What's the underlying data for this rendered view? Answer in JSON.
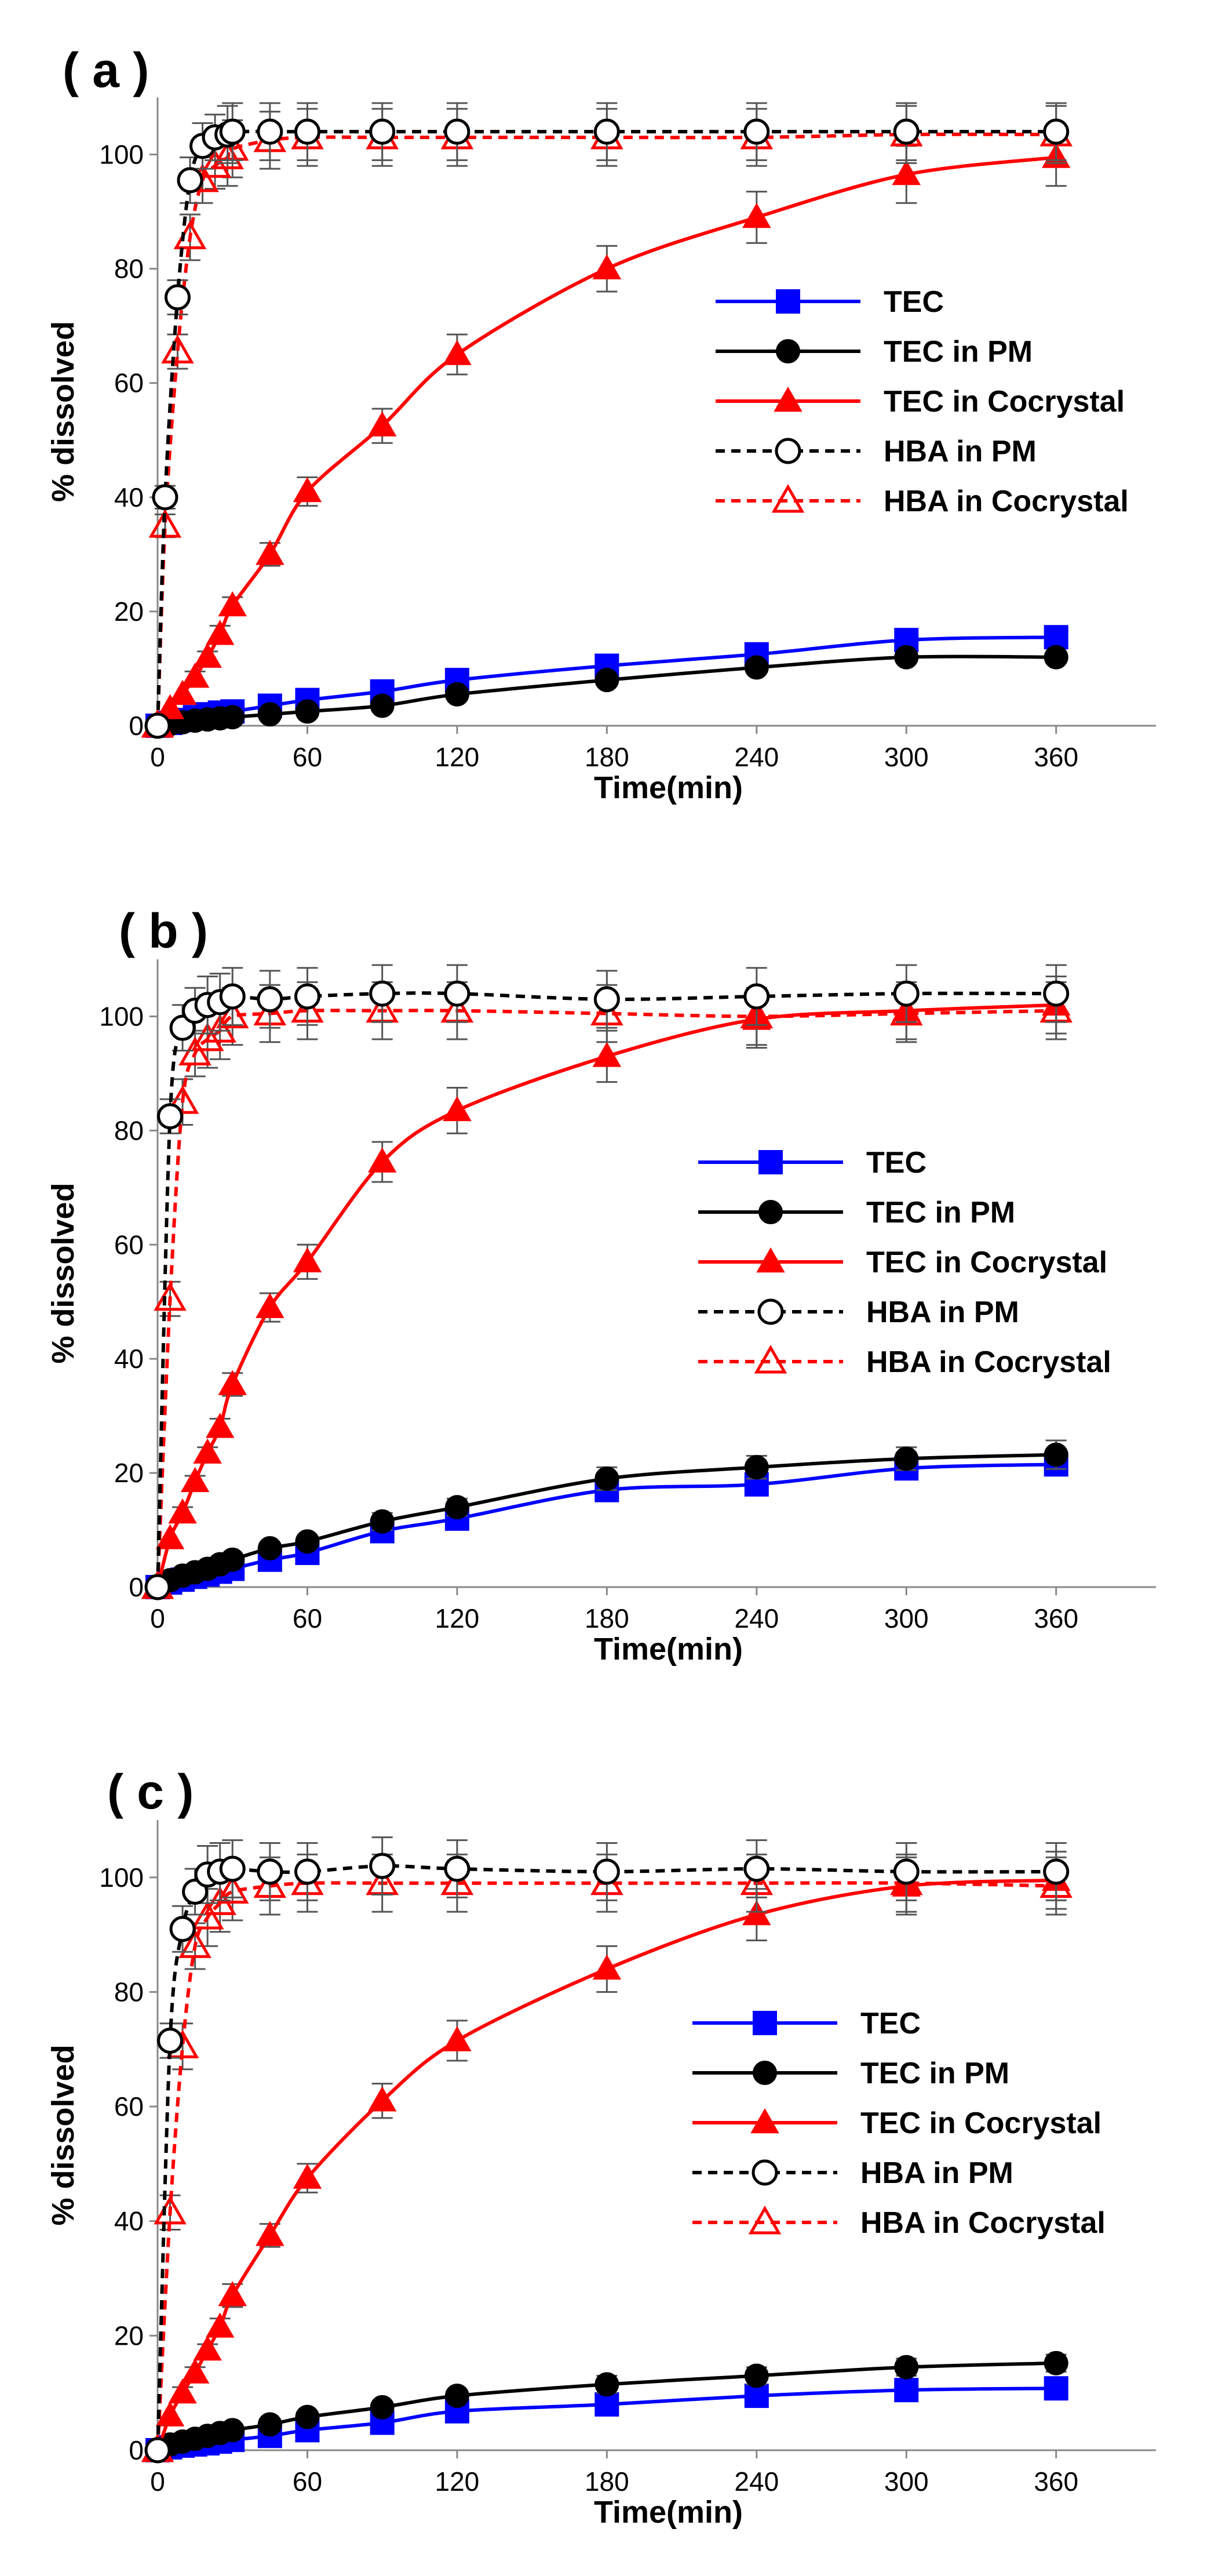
{
  "figure": {
    "panel_count": 3,
    "legend_entries": [
      "TEC",
      "TEC in PM",
      "TEC in Cocrystal",
      "HBA in PM",
      "HBA in Cocrystal"
    ]
  },
  "chart_data": [
    {
      "panel_label": "( a )",
      "type": "line",
      "xlabel": "Time(min)",
      "ylabel": "% dissolved",
      "xlim": [
        0,
        400
      ],
      "ylim": [
        0,
        110
      ],
      "xticks": [
        0,
        60,
        120,
        180,
        240,
        300,
        360
      ],
      "yticks": [
        0,
        20,
        40,
        60,
        80,
        100
      ],
      "grid": false,
      "legend_position": "center-right",
      "series": [
        {
          "name": "TEC",
          "color": "#0000ff",
          "marker": "square-filled",
          "line": "solid",
          "x": [
            0,
            5,
            10,
            15,
            20,
            25,
            30,
            45,
            60,
            90,
            120,
            180,
            240,
            300,
            360
          ],
          "y": [
            0,
            0.5,
            1.0,
            1.5,
            2.0,
            2.3,
            2.5,
            3.5,
            4.5,
            6.0,
            8.0,
            10.5,
            12.5,
            15.0,
            15.5
          ],
          "err": [
            0,
            0,
            0,
            0,
            0,
            0,
            0,
            0,
            0,
            0,
            0,
            0,
            0,
            0,
            0
          ]
        },
        {
          "name": "TEC in PM",
          "color": "#000000",
          "marker": "circle-filled",
          "line": "solid",
          "x": [
            0,
            5,
            10,
            15,
            20,
            25,
            30,
            45,
            60,
            90,
            120,
            180,
            240,
            300,
            360
          ],
          "y": [
            0,
            0.3,
            0.6,
            0.9,
            1.1,
            1.3,
            1.5,
            2.0,
            2.5,
            3.5,
            5.5,
            8.0,
            10.2,
            12.0,
            12.0
          ],
          "err": [
            0,
            0,
            0,
            0,
            0,
            0,
            0,
            0,
            0,
            0,
            0,
            0,
            0,
            0,
            0
          ]
        },
        {
          "name": "TEC in Cocrystal",
          "color": "#ff0000",
          "marker": "triangle-filled",
          "line": "solid",
          "x": [
            0,
            5,
            10,
            15,
            20,
            25,
            30,
            45,
            60,
            90,
            120,
            180,
            240,
            300,
            360
          ],
          "y": [
            0,
            3.0,
            5.5,
            8.5,
            12.0,
            16.0,
            21.0,
            30.0,
            41.0,
            52.5,
            65.0,
            80.0,
            89.0,
            96.5,
            99.5
          ],
          "err": [
            0,
            0,
            0,
            1,
            1,
            1.5,
            1.5,
            2,
            2.5,
            3,
            3.5,
            4,
            4.5,
            5,
            5
          ]
        },
        {
          "name": "HBA in PM",
          "color": "#000000",
          "marker": "circle-open",
          "line": "dashed",
          "x": [
            0,
            3,
            8,
            13,
            18,
            23,
            28,
            30,
            45,
            60,
            90,
            120,
            180,
            240,
            300,
            360
          ],
          "y": [
            0,
            40,
            75,
            95.5,
            101.5,
            103,
            103.5,
            104,
            104,
            104,
            104,
            104,
            104,
            104,
            104,
            104
          ],
          "err": [
            0,
            2,
            3,
            4,
            4,
            4,
            5,
            5,
            5,
            5,
            5,
            5,
            5,
            5,
            5,
            5
          ]
        },
        {
          "name": "HBA in Cocrystal",
          "color": "#ff0000",
          "marker": "triangle-open",
          "line": "dashed",
          "x": [
            0,
            3,
            8,
            13,
            18,
            23,
            28,
            30,
            45,
            60,
            90,
            120,
            180,
            240,
            300,
            360
          ],
          "y": [
            0,
            35,
            65.5,
            85.5,
            95.5,
            98,
            99.5,
            101,
            102.5,
            103,
            103,
            103,
            103,
            103,
            103.5,
            103.5
          ],
          "err": [
            0,
            2,
            3,
            4,
            4,
            4,
            5,
            5,
            5,
            5,
            5,
            5,
            5,
            5,
            5,
            5
          ]
        }
      ]
    },
    {
      "panel_label": "( b )",
      "type": "line",
      "xlabel": "Time(min)",
      "ylabel": "% dissolved",
      "xlim": [
        0,
        400
      ],
      "ylim": [
        0,
        110
      ],
      "xticks": [
        0,
        60,
        120,
        180,
        240,
        300,
        360
      ],
      "yticks": [
        0,
        20,
        40,
        60,
        80,
        100
      ],
      "grid": false,
      "legend_position": "center-right",
      "series": [
        {
          "name": "TEC",
          "color": "#0000ff",
          "marker": "square-filled",
          "line": "solid",
          "x": [
            0,
            5,
            10,
            15,
            20,
            25,
            30,
            45,
            60,
            90,
            120,
            180,
            240,
            300,
            360
          ],
          "y": [
            0,
            0.8,
            1.3,
            1.8,
            2.2,
            2.7,
            3.2,
            4.8,
            6.0,
            9.8,
            12.0,
            17.0,
            18.0,
            20.8,
            21.5
          ],
          "err": [
            0,
            0,
            0,
            0,
            0,
            0,
            0,
            0,
            0,
            1,
            1,
            1.5,
            1.5,
            1.5,
            1.5
          ]
        },
        {
          "name": "TEC in PM",
          "color": "#000000",
          "marker": "circle-filled",
          "line": "solid",
          "x": [
            0,
            5,
            10,
            15,
            20,
            25,
            30,
            45,
            60,
            90,
            120,
            180,
            240,
            300,
            360
          ],
          "y": [
            0,
            1.2,
            2.0,
            2.6,
            3.2,
            4.0,
            4.8,
            6.8,
            8.0,
            11.5,
            14.0,
            19.0,
            21.0,
            22.5,
            23.2
          ],
          "err": [
            0,
            0,
            0,
            0,
            0,
            0,
            0,
            0,
            1,
            1.5,
            1.5,
            2,
            2,
            2,
            2.5
          ]
        },
        {
          "name": "TEC in Cocrystal",
          "color": "#ff0000",
          "marker": "triangle-filled",
          "line": "solid",
          "x": [
            0,
            5,
            10,
            15,
            20,
            25,
            30,
            45,
            60,
            90,
            120,
            180,
            240,
            300,
            360
          ],
          "y": [
            0,
            8.5,
            13.0,
            18.5,
            23.5,
            28.0,
            35.5,
            49.0,
            57.0,
            74.5,
            83.5,
            93.0,
            99.5,
            101.0,
            102.0
          ],
          "err": [
            0,
            0,
            1,
            1,
            1,
            1.5,
            2,
            2.5,
            3,
            3.5,
            4,
            4.5,
            5,
            5,
            5
          ]
        },
        {
          "name": "HBA in PM",
          "color": "#000000",
          "marker": "circle-open",
          "line": "dashed",
          "x": [
            0,
            5,
            10,
            15,
            20,
            25,
            30,
            45,
            60,
            90,
            120,
            180,
            240,
            300,
            360
          ],
          "y": [
            0,
            82.5,
            98.0,
            101.0,
            102.0,
            102.5,
            103.5,
            103.0,
            103.5,
            104.0,
            104.0,
            103.0,
            103.5,
            104.0,
            104.0
          ],
          "err": [
            0,
            3,
            4,
            4,
            5,
            5,
            5,
            5,
            5,
            5,
            5,
            5,
            5,
            5,
            5
          ]
        },
        {
          "name": "HBA in Cocrystal",
          "color": "#ff0000",
          "marker": "triangle-open",
          "line": "dashed",
          "x": [
            0,
            5,
            10,
            15,
            20,
            25,
            30,
            45,
            60,
            90,
            120,
            180,
            240,
            300,
            360
          ],
          "y": [
            0,
            50.5,
            85.0,
            93.5,
            96.0,
            97.5,
            100.0,
            100.5,
            101.0,
            101.0,
            101.0,
            100.5,
            100.0,
            100.5,
            101.0
          ],
          "err": [
            0,
            3,
            4,
            4,
            5,
            5,
            5,
            5,
            5,
            5,
            5,
            5,
            5,
            5,
            5
          ]
        }
      ]
    },
    {
      "panel_label": "( c )",
      "type": "line",
      "xlabel": "Time(min)",
      "ylabel": "% dissolved",
      "xlim": [
        0,
        400
      ],
      "ylim": [
        0,
        110
      ],
      "xticks": [
        0,
        60,
        120,
        180,
        240,
        300,
        360
      ],
      "yticks": [
        0,
        20,
        40,
        60,
        80,
        100
      ],
      "grid": false,
      "legend_position": "center-right",
      "series": [
        {
          "name": "TEC",
          "color": "#0000ff",
          "marker": "square-filled",
          "line": "solid",
          "x": [
            0,
            5,
            10,
            15,
            20,
            25,
            30,
            45,
            60,
            90,
            120,
            180,
            240,
            300,
            360
          ],
          "y": [
            0,
            0.5,
            0.8,
            1.0,
            1.2,
            1.5,
            1.8,
            2.5,
            3.5,
            4.8,
            6.8,
            8.0,
            9.5,
            10.5,
            10.8
          ],
          "err": [
            0,
            0,
            0,
            0,
            0,
            0,
            0,
            0,
            0,
            0,
            1,
            1,
            1,
            1,
            1
          ]
        },
        {
          "name": "TEC in PM",
          "color": "#000000",
          "marker": "circle-filled",
          "line": "solid",
          "x": [
            0,
            5,
            10,
            15,
            20,
            25,
            30,
            45,
            60,
            90,
            120,
            180,
            240,
            300,
            360
          ],
          "y": [
            0,
            1.0,
            1.5,
            2.0,
            2.5,
            3.0,
            3.5,
            4.5,
            5.8,
            7.5,
            9.5,
            11.5,
            13.0,
            14.5,
            15.2
          ],
          "err": [
            0,
            0,
            0,
            0,
            0,
            0,
            0,
            0,
            0,
            1,
            1,
            1.5,
            1.5,
            1.5,
            1.5
          ]
        },
        {
          "name": "TEC in Cocrystal",
          "color": "#ff0000",
          "marker": "triangle-filled",
          "line": "solid",
          "x": [
            0,
            5,
            10,
            15,
            20,
            25,
            30,
            45,
            60,
            90,
            120,
            180,
            240,
            300,
            360
          ],
          "y": [
            0,
            6.0,
            10.0,
            13.5,
            17.5,
            21.5,
            27.0,
            37.5,
            47.5,
            61.0,
            71.5,
            84.0,
            93.5,
            98.5,
            99.5
          ],
          "err": [
            0,
            0,
            1,
            1,
            1,
            1.5,
            2,
            2,
            2.5,
            3,
            3.5,
            4,
            4.5,
            5,
            5
          ]
        },
        {
          "name": "HBA in PM",
          "color": "#000000",
          "marker": "circle-open",
          "line": "dashed",
          "x": [
            0,
            5,
            10,
            15,
            20,
            25,
            30,
            45,
            60,
            90,
            120,
            180,
            240,
            300,
            360
          ],
          "y": [
            0,
            71.5,
            91.0,
            97.5,
            100.5,
            101.0,
            101.5,
            101.0,
            101.0,
            102.0,
            101.5,
            101.0,
            101.5,
            101.0,
            101.0
          ],
          "err": [
            0,
            3,
            4,
            4,
            5,
            5,
            5,
            5,
            5,
            5,
            5,
            5,
            5,
            5,
            5
          ]
        },
        {
          "name": "HBA in Cocrystal",
          "color": "#ff0000",
          "marker": "triangle-open",
          "line": "dashed",
          "x": [
            0,
            5,
            10,
            15,
            20,
            25,
            30,
            45,
            60,
            90,
            120,
            180,
            240,
            300,
            360
          ],
          "y": [
            0,
            41.5,
            70.5,
            88.0,
            93.0,
            95.5,
            97.5,
            98.5,
            99.0,
            99.0,
            99.0,
            99.0,
            99.0,
            99.0,
            98.5
          ],
          "err": [
            0,
            3,
            4,
            4,
            5,
            5,
            5,
            5,
            5,
            5,
            5,
            5,
            5,
            5,
            5
          ]
        }
      ]
    }
  ]
}
